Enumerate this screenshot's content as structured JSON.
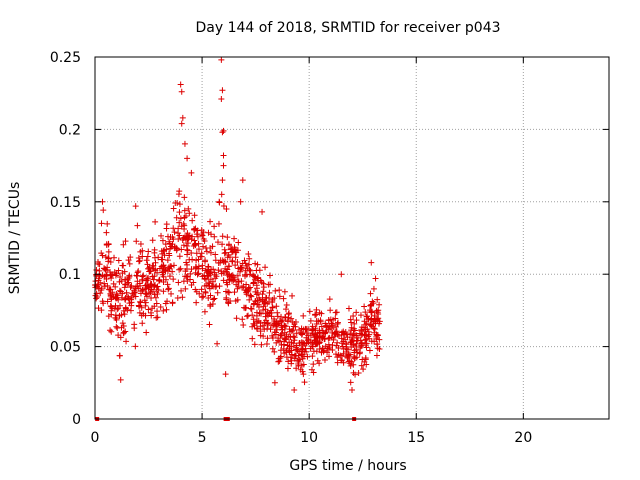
{
  "chart_data": {
    "type": "scatter",
    "title": "Day 144 of 2018, SRMTID for receiver p043",
    "xlabel": "GPS time / hours",
    "ylabel": "SRMTID / TECUs",
    "xlim": [
      0,
      24
    ],
    "ylim": [
      0,
      0.25
    ],
    "xticks": [
      0,
      5,
      10,
      15,
      20
    ],
    "xtick_labels": [
      "0",
      "5",
      "10",
      "15",
      "20"
    ],
    "yticks": [
      0,
      0.05,
      0.1,
      0.15,
      0.2,
      0.25
    ],
    "ytick_labels": [
      "0",
      "0.05",
      "0.1",
      "0.15",
      "0.2",
      "0.25"
    ],
    "grid": true,
    "marker": "+",
    "color": "#dd0000",
    "zero_points_x": [
      0.1,
      6.1,
      6.2,
      12.1
    ],
    "envelope": [
      {
        "x": 0.0,
        "low": 0.085,
        "high": 0.1
      },
      {
        "x": 0.3,
        "low": 0.055,
        "high": 0.145
      },
      {
        "x": 0.6,
        "low": 0.055,
        "high": 0.15
      },
      {
        "x": 1.0,
        "low": 0.04,
        "high": 0.12
      },
      {
        "x": 1.5,
        "low": 0.03,
        "high": 0.135
      },
      {
        "x": 2.0,
        "low": 0.04,
        "high": 0.145
      },
      {
        "x": 2.5,
        "low": 0.05,
        "high": 0.135
      },
      {
        "x": 3.0,
        "low": 0.06,
        "high": 0.145
      },
      {
        "x": 3.5,
        "low": 0.06,
        "high": 0.15
      },
      {
        "x": 4.0,
        "low": 0.07,
        "high": 0.185
      },
      {
        "x": 4.5,
        "low": 0.07,
        "high": 0.165
      },
      {
        "x": 5.0,
        "low": 0.06,
        "high": 0.15
      },
      {
        "x": 5.5,
        "low": 0.05,
        "high": 0.145
      },
      {
        "x": 6.0,
        "low": 0.05,
        "high": 0.18
      },
      {
        "x": 6.5,
        "low": 0.06,
        "high": 0.135
      },
      {
        "x": 7.0,
        "low": 0.05,
        "high": 0.13
      },
      {
        "x": 7.5,
        "low": 0.045,
        "high": 0.12
      },
      {
        "x": 8.0,
        "low": 0.035,
        "high": 0.115
      },
      {
        "x": 8.5,
        "low": 0.03,
        "high": 0.095
      },
      {
        "x": 9.0,
        "low": 0.025,
        "high": 0.09
      },
      {
        "x": 9.5,
        "low": 0.02,
        "high": 0.08
      },
      {
        "x": 10.0,
        "low": 0.025,
        "high": 0.085
      },
      {
        "x": 10.5,
        "low": 0.03,
        "high": 0.085
      },
      {
        "x": 11.0,
        "low": 0.03,
        "high": 0.09
      },
      {
        "x": 11.5,
        "low": 0.025,
        "high": 0.085
      },
      {
        "x": 12.0,
        "low": 0.02,
        "high": 0.08
      },
      {
        "x": 12.5,
        "low": 0.025,
        "high": 0.09
      },
      {
        "x": 13.0,
        "low": 0.03,
        "high": 0.1
      },
      {
        "x": 13.3,
        "low": 0.04,
        "high": 0.095
      }
    ],
    "outliers": [
      {
        "x": 4.0,
        "y": 0.231
      },
      {
        "x": 4.05,
        "y": 0.226
      },
      {
        "x": 4.1,
        "y": 0.208
      },
      {
        "x": 4.05,
        "y": 0.204
      },
      {
        "x": 4.2,
        "y": 0.19
      },
      {
        "x": 4.3,
        "y": 0.18
      },
      {
        "x": 5.9,
        "y": 0.248
      },
      {
        "x": 5.95,
        "y": 0.227
      },
      {
        "x": 5.9,
        "y": 0.221
      },
      {
        "x": 6.0,
        "y": 0.199
      },
      {
        "x": 5.95,
        "y": 0.198
      },
      {
        "x": 6.0,
        "y": 0.182
      },
      {
        "x": 6.0,
        "y": 0.175
      },
      {
        "x": 5.95,
        "y": 0.165
      },
      {
        "x": 6.9,
        "y": 0.165
      },
      {
        "x": 6.8,
        "y": 0.15
      },
      {
        "x": 5.8,
        "y": 0.15
      },
      {
        "x": 4.5,
        "y": 0.17
      },
      {
        "x": 1.9,
        "y": 0.147
      },
      {
        "x": 0.35,
        "y": 0.15
      },
      {
        "x": 6.1,
        "y": 0.031
      },
      {
        "x": 1.2,
        "y": 0.027
      },
      {
        "x": 5.7,
        "y": 0.052
      },
      {
        "x": 8.4,
        "y": 0.025
      },
      {
        "x": 9.3,
        "y": 0.02
      },
      {
        "x": 12.0,
        "y": 0.02
      },
      {
        "x": 12.9,
        "y": 0.108
      },
      {
        "x": 11.5,
        "y": 0.1
      },
      {
        "x": 13.1,
        "y": 0.097
      },
      {
        "x": 9.2,
        "y": 0.085
      },
      {
        "x": 7.8,
        "y": 0.143
      }
    ],
    "n_cluster_points": 1250,
    "random_seed": 144
  }
}
